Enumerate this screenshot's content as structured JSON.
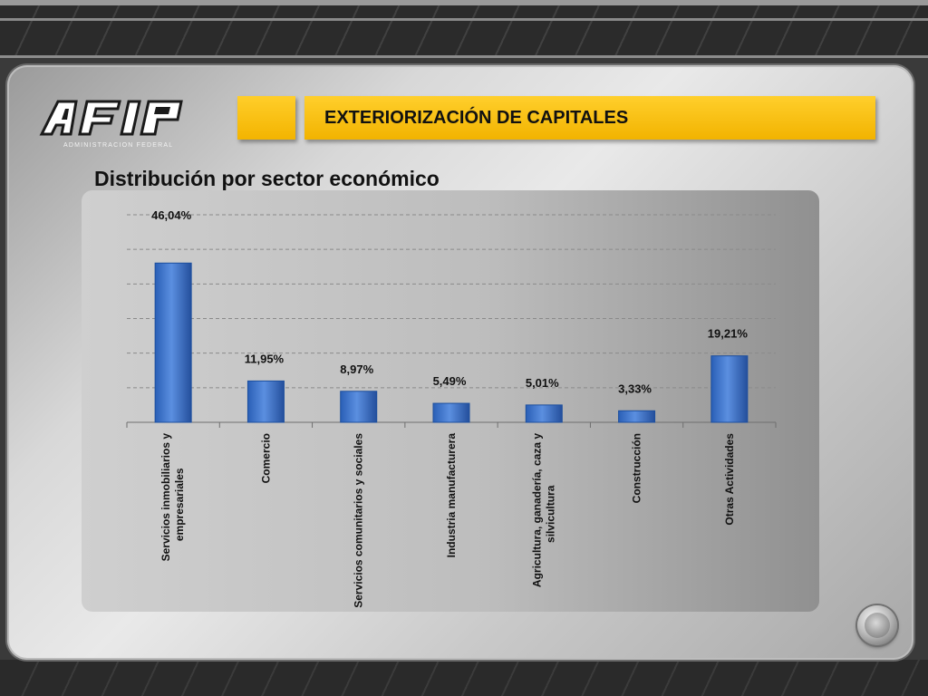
{
  "header": {
    "logo_text": "AFIP",
    "logo_subtext": "ADMINISTRACION FEDERAL",
    "title": "EXTERIORIZACIÓN DE CAPITALES"
  },
  "slide": {
    "subtitle": "Distribución por sector económico"
  },
  "colors": {
    "accent": "#f5b800",
    "bar": "#3f74c8",
    "bar_dark": "#1d4f9e"
  },
  "chart_data": {
    "type": "bar",
    "title": "",
    "xlabel": "",
    "ylabel": "",
    "ylim": [
      0,
      60
    ],
    "grid": true,
    "categories": [
      [
        "Servicios inmobiliarios y",
        "empresariales"
      ],
      [
        "Comercio"
      ],
      [
        "Servicios comunitarios y sociales"
      ],
      [
        "Industria manufacturera"
      ],
      [
        "Agricultura, ganadería, caza y",
        "silvicultura"
      ],
      [
        "Construcción"
      ],
      [
        "Otras Actividades"
      ]
    ],
    "values": [
      46.04,
      11.95,
      8.97,
      5.49,
      5.01,
      3.33,
      19.21
    ],
    "labels": [
      "46,04%",
      "11,95%",
      "8,97%",
      "5,49%",
      "5,01%",
      "3,33%",
      "19,21%"
    ]
  }
}
